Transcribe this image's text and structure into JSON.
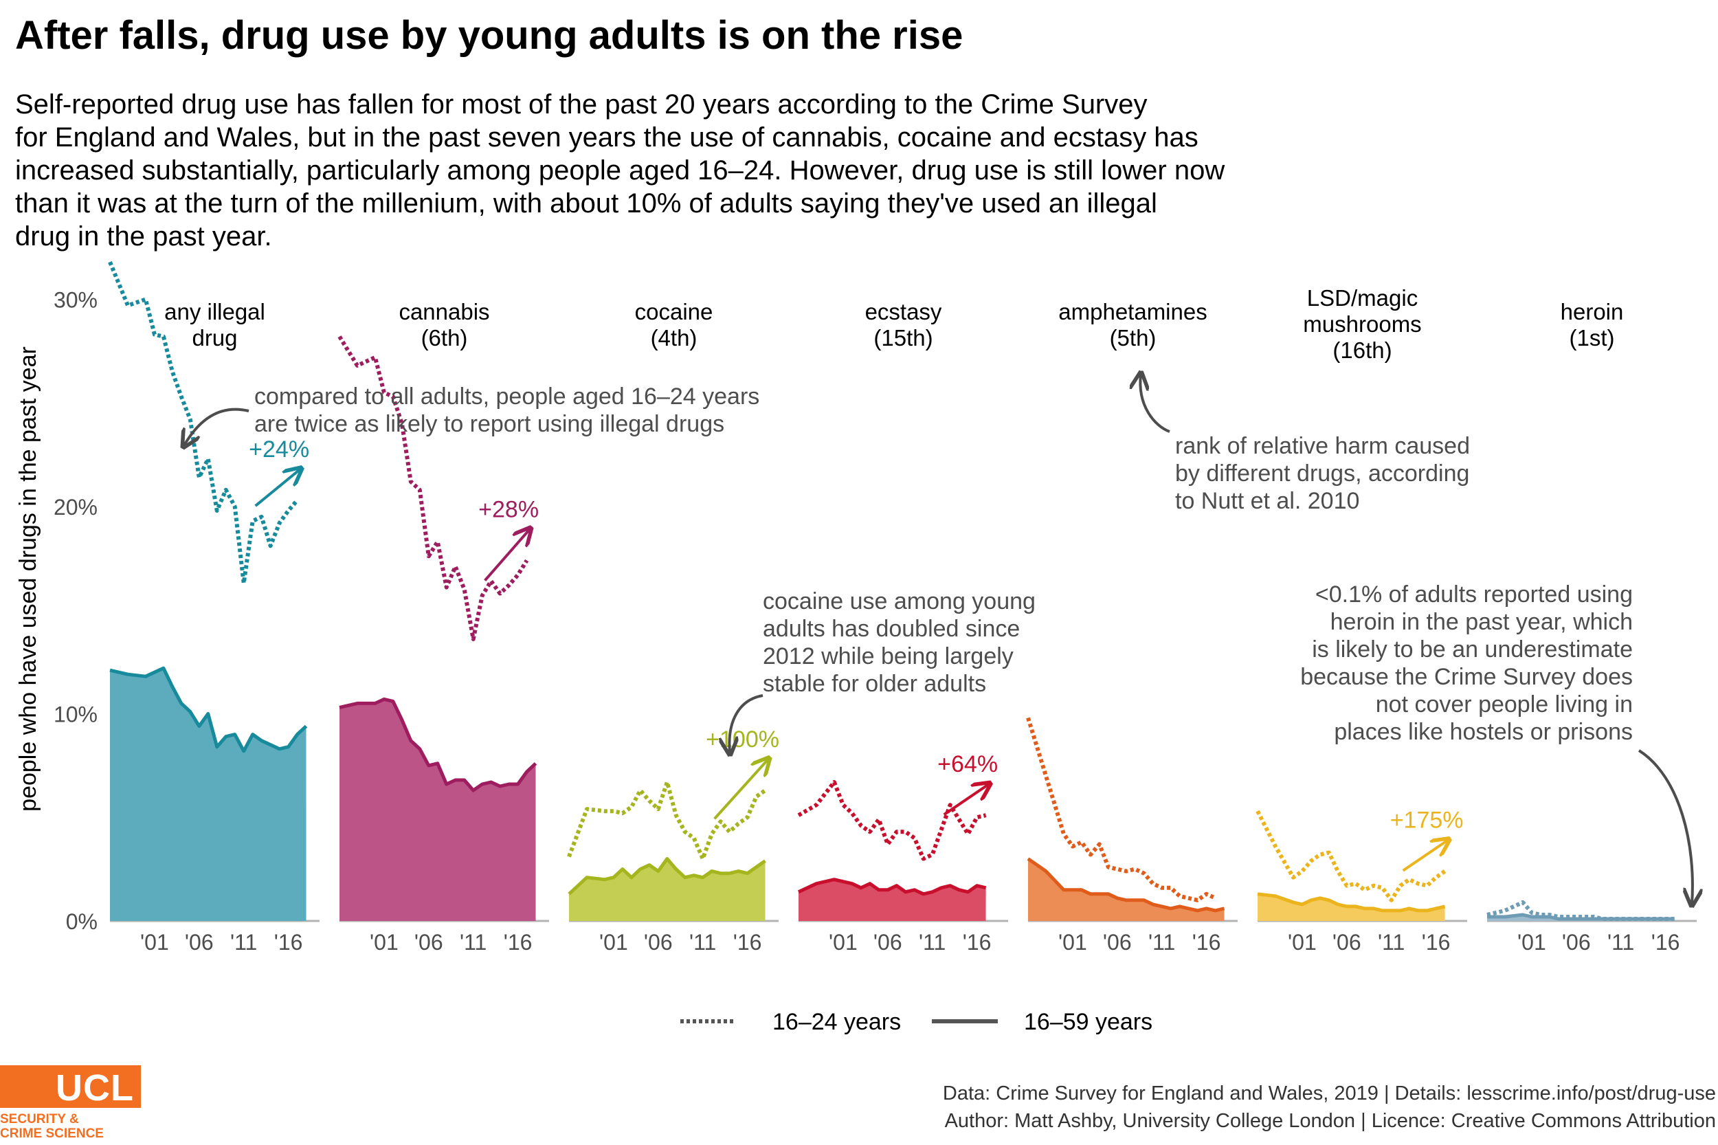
{
  "title": "After falls, drug use by young adults is on the rise",
  "subtitle_lines": [
    "Self-reported drug use has fallen for most of the past 20 years according to the Crime Survey",
    "for England and Wales, but in the past seven years the use of cannabis, cocaine and ecstasy has",
    "increased substantially, particularly among people aged 16–24. However, drug use is still lower now",
    "than it was at the turn of the millenium, with about 10% of adults saying they've used an illegal",
    "drug in the past year."
  ],
  "footer": {
    "line1": "Data: Crime Survey for England and Wales, 2019 |  Details: lesscrime.info/post/drug-use",
    "line2": "Author: Matt Ashby, University College London |  Licence: Creative Commons Attribution"
  },
  "logo": {
    "text": "UCL",
    "sub1": "SECURITY &",
    "sub2": "CRIME SCIENCE"
  },
  "chart_data": {
    "type": "area",
    "ylabel": "people who have used drugs in the past year",
    "y_ticks": [
      "0%",
      "10%",
      "20%",
      "30%"
    ],
    "ylim": [
      0,
      33
    ],
    "xlim": [
      1996,
      2019.5
    ],
    "x_ticks": [
      2001,
      2006,
      2011,
      2016
    ],
    "x_tick_labels": [
      "'01",
      "'06",
      "'11",
      "'16"
    ],
    "years": [
      1996,
      1998,
      2000,
      2001,
      2002,
      2003,
      2004,
      2005,
      2006,
      2007,
      2008,
      2009,
      2010,
      2011,
      2012,
      2013,
      2014,
      2015,
      2016,
      2017,
      2018
    ],
    "legend": {
      "young": "16–24 years",
      "all": "16–59 years"
    },
    "panels": [
      {
        "label1": "any illegal",
        "label2": "drug",
        "label3": "",
        "color": "#178a9c",
        "fill": "#5dacbd",
        "young": [
          31.8,
          29.7,
          30.0,
          28.3,
          28.2,
          26.5,
          25.3,
          24.2,
          21.4,
          22.3,
          19.8,
          20.8,
          20.0,
          16.3,
          19.3,
          19.5,
          18.1,
          19.2,
          19.8,
          20.3,
          null
        ],
        "all": [
          12.1,
          11.9,
          11.8,
          12.0,
          12.2,
          11.3,
          10.5,
          10.1,
          9.4,
          10.0,
          8.4,
          8.9,
          9.0,
          8.2,
          9.0,
          8.7,
          8.5,
          8.3,
          8.4,
          9.0,
          9.4
        ],
        "change": "+24%"
      },
      {
        "label1": "cannabis",
        "label2": "(6th)",
        "label3": "",
        "color": "#9e1d5e",
        "fill": "#bc5487",
        "young": [
          28.2,
          26.8,
          27.2,
          25.5,
          25.3,
          24.0,
          21.2,
          20.8,
          17.6,
          18.3,
          16.1,
          17.1,
          16.0,
          13.6,
          15.7,
          16.4,
          15.8,
          16.2,
          16.7,
          17.4,
          null
        ],
        "all": [
          10.3,
          10.5,
          10.5,
          10.7,
          10.6,
          9.7,
          8.7,
          8.3,
          7.5,
          7.6,
          6.6,
          6.8,
          6.8,
          6.3,
          6.6,
          6.7,
          6.5,
          6.6,
          6.6,
          7.2,
          7.6
        ],
        "change": "+28%"
      },
      {
        "label1": "cocaine",
        "label2": "(4th)",
        "label3": "",
        "color": "#a5b51e",
        "fill": "#c3ce52",
        "young": [
          3.1,
          5.4,
          5.3,
          5.3,
          5.2,
          5.5,
          6.3,
          5.8,
          5.4,
          6.7,
          5.1,
          4.3,
          4.0,
          3.0,
          4.2,
          4.8,
          4.3,
          4.7,
          5.0,
          6.0,
          6.3
        ],
        "all": [
          1.3,
          2.1,
          2.0,
          2.1,
          2.5,
          2.1,
          2.5,
          2.7,
          2.4,
          3.0,
          2.5,
          2.1,
          2.2,
          2.1,
          2.4,
          2.3,
          2.3,
          2.4,
          2.3,
          2.6,
          2.9
        ],
        "change": "+100%"
      },
      {
        "label1": "ecstasy",
        "label2": "(15th)",
        "label3": "",
        "color": "#c8102e",
        "fill": "#db4d64",
        "young": [
          5.1,
          5.6,
          6.7,
          5.6,
          5.2,
          4.6,
          4.3,
          4.9,
          3.7,
          4.3,
          4.3,
          4.0,
          3.0,
          3.2,
          4.4,
          5.6,
          4.9,
          4.2,
          5.0,
          5.1,
          null
        ],
        "all": [
          1.4,
          1.8,
          2.0,
          1.9,
          1.8,
          1.6,
          1.8,
          1.5,
          1.5,
          1.7,
          1.4,
          1.5,
          1.3,
          1.4,
          1.6,
          1.7,
          1.5,
          1.4,
          1.7,
          1.6,
          null
        ],
        "change": "+64%"
      },
      {
        "label1": "amphetamines",
        "label2": "(5th)",
        "label3": "",
        "color": "#e05c1a",
        "fill": "#ec8d55",
        "young": [
          9.8,
          7.0,
          4.2,
          3.6,
          3.8,
          3.2,
          3.7,
          2.6,
          2.5,
          2.4,
          2.5,
          2.3,
          1.8,
          1.6,
          1.6,
          1.2,
          1.1,
          1.0,
          1.3,
          1.1,
          null
        ],
        "all": [
          3.0,
          2.4,
          1.5,
          1.5,
          1.5,
          1.3,
          1.3,
          1.3,
          1.1,
          1.0,
          1.0,
          1.0,
          0.8,
          0.7,
          0.6,
          0.7,
          0.6,
          0.5,
          0.6,
          0.5,
          0.6
        ],
        "change": ""
      },
      {
        "label1": "LSD/magic",
        "label2": "mushrooms",
        "label3": "(16th)",
        "color": "#ecb41c",
        "fill": "#f4cb5c",
        "young": [
          5.3,
          3.6,
          2.1,
          2.4,
          2.9,
          3.2,
          3.3,
          2.4,
          1.7,
          1.8,
          1.5,
          1.7,
          1.6,
          1.0,
          1.7,
          2.0,
          1.8,
          1.7,
          2.1,
          2.4,
          null
        ],
        "all": [
          1.3,
          1.2,
          0.9,
          0.8,
          1.0,
          1.1,
          1.0,
          0.8,
          0.7,
          0.7,
          0.6,
          0.6,
          0.5,
          0.5,
          0.5,
          0.6,
          0.5,
          0.5,
          0.6,
          0.7,
          null
        ],
        "change": "+175%"
      },
      {
        "label1": "heroin",
        "label2": "(1st)",
        "label3": "",
        "color": "#6f9cb5",
        "fill": "#9dbccd",
        "young": [
          0.3,
          0.5,
          0.9,
          0.4,
          0.3,
          0.3,
          0.2,
          0.2,
          0.2,
          0.2,
          0.2,
          0.1,
          0.1,
          0.1,
          0.1,
          0.1,
          0.1,
          0.1,
          0.1,
          0.1,
          null
        ],
        "all": [
          0.2,
          0.2,
          0.3,
          0.2,
          0.2,
          0.2,
          0.1,
          0.1,
          0.1,
          0.1,
          0.1,
          0.1,
          0.1,
          0.1,
          0.1,
          0.1,
          0.1,
          0.1,
          0.1,
          0.1,
          null
        ],
        "change": ""
      }
    ],
    "annotations": {
      "young_adults": [
        "compared to all adults, people aged 16–24 years",
        "are twice as likely to report using illegal drugs"
      ],
      "harm_rank": [
        "rank of relative harm caused",
        "by different drugs, according",
        "to Nutt et al. 2010"
      ],
      "cocaine": [
        "cocaine use among young",
        "adults has doubled since",
        "2012 while being largely",
        "stable for older adults"
      ],
      "heroin": [
        "<0.1% of adults reported using",
        "heroin in the past year, which",
        "is likely to be an underestimate",
        "because the Crime Survey does",
        "not cover people living in",
        "places like hostels or prisons"
      ]
    }
  }
}
